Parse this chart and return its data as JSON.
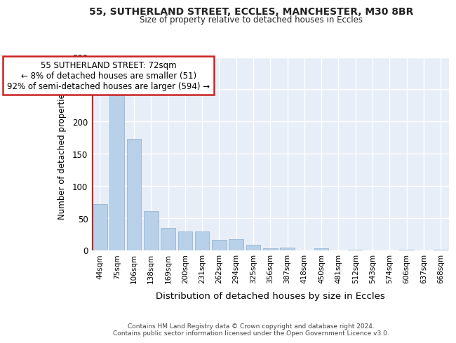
{
  "title_line1": "55, SUTHERLAND STREET, ECCLES, MANCHESTER, M30 8BR",
  "title_line2": "Size of property relative to detached houses in Eccles",
  "xlabel": "Distribution of detached houses by size in Eccles",
  "ylabel": "Number of detached properties",
  "categories": [
    "44sqm",
    "75sqm",
    "106sqm",
    "138sqm",
    "169sqm",
    "200sqm",
    "231sqm",
    "262sqm",
    "294sqm",
    "325sqm",
    "356sqm",
    "387sqm",
    "418sqm",
    "450sqm",
    "481sqm",
    "512sqm",
    "543sqm",
    "574sqm",
    "606sqm",
    "637sqm",
    "668sqm"
  ],
  "values": [
    72,
    241,
    173,
    61,
    34,
    29,
    29,
    16,
    17,
    8,
    3,
    4,
    0,
    3,
    0,
    1,
    0,
    0,
    1,
    0,
    1
  ],
  "bar_color": "#b8d0e8",
  "bar_edge_color": "#8ab0cc",
  "vline_color": "#cc2222",
  "annotation_text": "55 SUTHERLAND STREET: 72sqm\n← 8% of detached houses are smaller (51)\n92% of semi-detached houses are larger (594) →",
  "annotation_box_color": "#ffffff",
  "annotation_box_edge": "#cc2222",
  "ylim": [
    0,
    300
  ],
  "yticks": [
    0,
    50,
    100,
    150,
    200,
    250,
    300
  ],
  "bg_color": "#e8eef8",
  "footnote": "Contains HM Land Registry data © Crown copyright and database right 2024.\nContains public sector information licensed under the Open Government Licence v3.0."
}
